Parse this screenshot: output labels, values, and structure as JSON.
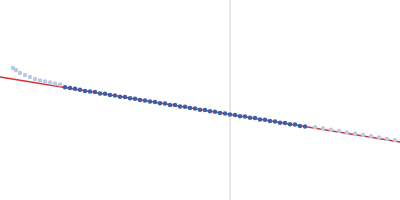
{
  "chart_data": {
    "type": "scatter",
    "tick_labels": false,
    "grid": false,
    "xlim": [
      0,
      400
    ],
    "ylim": [
      0,
      200
    ],
    "reference_x": 230,
    "series": [
      {
        "type": "scatter",
        "color": "#b9c9e6",
        "marker": "circle",
        "x": [
          13,
          16,
          20,
          25,
          30,
          35,
          40,
          45,
          50,
          55,
          60
        ],
        "values": [
          132,
          130,
          127,
          125,
          123,
          121,
          119.5,
          118.5,
          117.5,
          116.5,
          115.5
        ]
      },
      {
        "type": "scatter",
        "color": "#3b5fa9",
        "marker": "circle",
        "x": [
          65,
          70,
          75,
          80,
          85,
          90,
          95,
          100,
          105,
          110,
          115,
          120,
          125,
          130,
          135,
          140,
          145,
          150,
          155,
          160,
          165,
          170,
          175,
          180,
          185,
          190,
          195,
          200,
          205,
          210,
          215,
          220,
          225,
          230,
          235,
          240,
          245,
          250,
          255,
          260,
          265,
          270,
          275,
          280,
          285,
          290,
          295,
          300,
          305
        ],
        "values": [
          112.8,
          111.9,
          111.2,
          110.3,
          109.0,
          108.6,
          107.9,
          106.5,
          106.2,
          105.0,
          104.6,
          103.3,
          102.9,
          101.7,
          101.3,
          100.0,
          99.6,
          98.4,
          98.1,
          96.8,
          96.4,
          95.1,
          94.9,
          93.5,
          93.2,
          92.0,
          91.5,
          90.2,
          89.9,
          88.7,
          88.3,
          87.0,
          86.6,
          85.4,
          85.1,
          83.8,
          83.4,
          82.2,
          81.9,
          80.5,
          80.2,
          78.9,
          78.6,
          77.3,
          76.9,
          75.7,
          75.4,
          74.0,
          73.6
        ]
      },
      {
        "type": "scatter",
        "color": "#b9c9e6",
        "marker": "circle",
        "x": [
          315,
          323,
          331,
          339,
          347,
          355,
          363,
          371,
          379,
          387,
          395
        ],
        "values": [
          72.8,
          71.5,
          70.2,
          68.9,
          67.6,
          66.3,
          65.0,
          63.7,
          62.4,
          61.1,
          59.8
        ]
      },
      {
        "type": "line",
        "color": "#d9302c",
        "line_style": "solid",
        "x": [
          0,
          400
        ],
        "values": [
          123,
          58
        ]
      }
    ]
  }
}
